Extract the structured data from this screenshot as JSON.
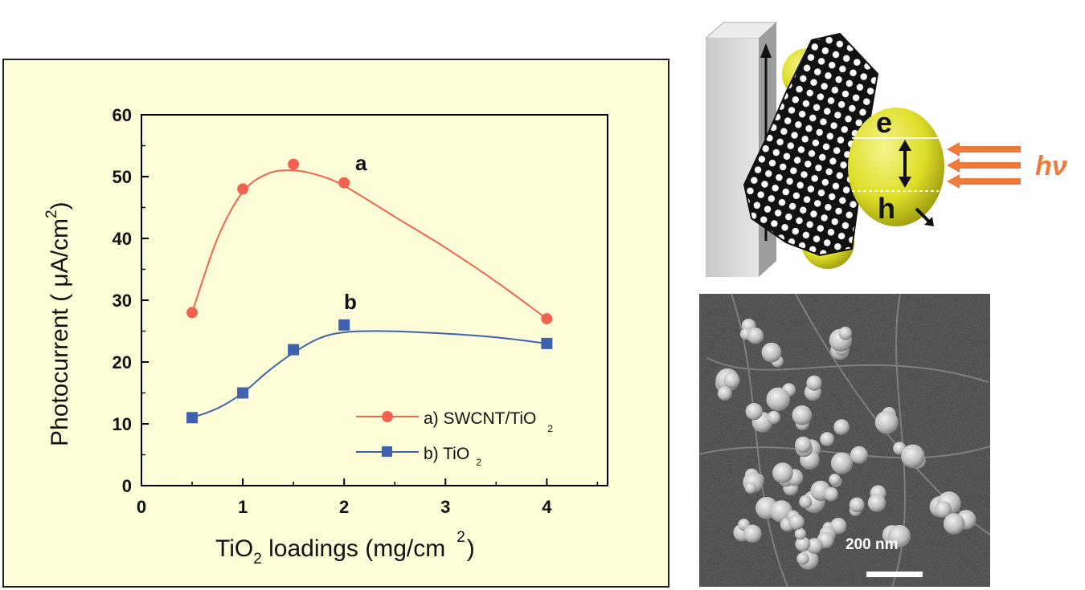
{
  "chart_data": {
    "type": "line",
    "xlabel_main": "TiO",
    "xlabel_sub": "2",
    "xlabel_rest": " loadings (mg/cm",
    "xlabel_sup": "2",
    "xlabel_close": ")",
    "ylabel_main": "Photocurrent ( μA/cm",
    "ylabel_sup": "2",
    "ylabel_close": ")",
    "xlim": [
      0,
      4.6
    ],
    "ylim": [
      0,
      60
    ],
    "x_ticks": [
      {
        "value": 0,
        "label": "0"
      },
      {
        "value": 1,
        "label": "1"
      },
      {
        "value": 2,
        "label": "2"
      },
      {
        "value": 3,
        "label": "3"
      },
      {
        "value": 4,
        "label": "4"
      }
    ],
    "y_ticks": [
      {
        "value": 0,
        "label": "0"
      },
      {
        "value": 10,
        "label": "10"
      },
      {
        "value": 20,
        "label": "20"
      },
      {
        "value": 30,
        "label": "30"
      },
      {
        "value": 40,
        "label": "40"
      },
      {
        "value": 50,
        "label": "50"
      },
      {
        "value": 60,
        "label": "60"
      }
    ],
    "series": [
      {
        "label": "a",
        "legend_text": "a) SWCNT/TiO",
        "legend_sub": "2",
        "color": "#f2634f",
        "marker": "circle",
        "x": [
          0.5,
          1.0,
          1.5,
          2.0,
          4.0
        ],
        "y": [
          28,
          48,
          52,
          49,
          27
        ],
        "curve": [
          [
            0.5,
            28
          ],
          [
            0.75,
            40
          ],
          [
            1.0,
            47.5
          ],
          [
            1.25,
            50.5
          ],
          [
            1.5,
            51
          ],
          [
            1.75,
            50.2
          ],
          [
            2.0,
            48.5
          ],
          [
            2.5,
            43.5
          ],
          [
            3.0,
            38.5
          ],
          [
            3.5,
            33
          ],
          [
            4.0,
            27
          ]
        ]
      },
      {
        "label": "b",
        "legend_text": "b) TiO",
        "legend_sub": "2",
        "color": "#3f61b0",
        "marker": "square",
        "x": [
          0.5,
          1.0,
          1.5,
          2.0,
          4.0
        ],
        "y": [
          11,
          15,
          22,
          26,
          23
        ],
        "curve": [
          [
            0.5,
            11
          ],
          [
            0.75,
            12.5
          ],
          [
            1.0,
            15
          ],
          [
            1.25,
            18.5
          ],
          [
            1.5,
            21.5
          ],
          [
            1.75,
            23.8
          ],
          [
            2.0,
            24.8
          ],
          [
            2.4,
            25
          ],
          [
            3.0,
            24.6
          ],
          [
            3.5,
            24
          ],
          [
            4.0,
            23
          ]
        ]
      }
    ],
    "legend_position": "bottom-right",
    "grid": false,
    "background_color": "#fdfdd8"
  },
  "schematic": {
    "electron_label": "e",
    "hole_label": "h",
    "light_label": "hν",
    "sphere_color": "#dede28",
    "arrow_color": "#f07a3c"
  },
  "micrograph": {
    "scale_label": "200 nm"
  }
}
